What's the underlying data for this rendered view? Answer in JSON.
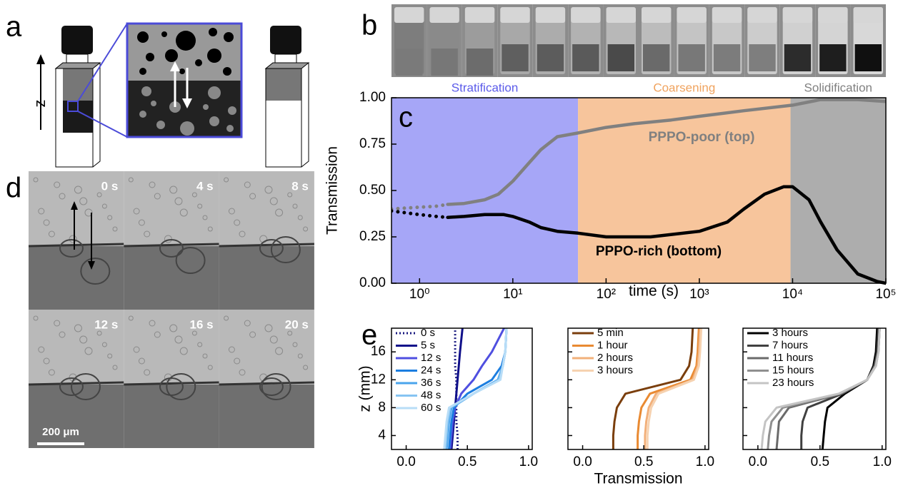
{
  "panel_labels": {
    "a": "a",
    "b": "b",
    "d": "d",
    "e": "e"
  },
  "schematic": {
    "axis_label": "z"
  },
  "micrograph": {
    "frames": [
      "0 s",
      "4 s",
      "8 s",
      "12 s",
      "16 s",
      "20 s"
    ],
    "scale_bar": "200 μm"
  },
  "chart_data": [
    {
      "type": "line",
      "panel_label": "c",
      "xlabel": "time (s)",
      "ylabel": "Transmission",
      "log_x": true,
      "xlim": [
        0.5,
        100000
      ],
      "xticks": [
        {
          "value": 1,
          "label": "10⁰"
        },
        {
          "value": 10,
          "label": "10¹"
        },
        {
          "value": 100,
          "label": "10²"
        },
        {
          "value": 1000,
          "label": "10³"
        },
        {
          "value": 10000,
          "label": "10⁴"
        },
        {
          "value": 100000,
          "label": "10⁵"
        }
      ],
      "ylim": [
        0,
        1
      ],
      "yticks": [
        {
          "value": 0,
          "label": "0.00"
        },
        {
          "value": 0.25,
          "label": "0.25"
        },
        {
          "value": 0.5,
          "label": "0.50"
        },
        {
          "value": 0.75,
          "label": "0.75"
        },
        {
          "value": 1,
          "label": "1.00"
        }
      ],
      "regions": [
        {
          "name": "Stratification",
          "range": [
            0.5,
            50
          ],
          "color": "#a6a6f7",
          "label_color": "#5b5bea"
        },
        {
          "name": "Coarsening",
          "range": [
            50,
            9500
          ],
          "color": "#f7c59c",
          "label_color": "#f0a35e"
        },
        {
          "name": "Solidification",
          "range": [
            9500,
            100000
          ],
          "color": "#adadad",
          "label_color": "#808080"
        }
      ],
      "dotted_before": 2,
      "series": [
        {
          "name": "PPPO-poor (top)",
          "color": "#808080",
          "x": [
            0.5,
            0.7,
            1,
            1.5,
            2,
            3,
            5,
            7,
            10,
            15,
            20,
            30,
            50,
            100,
            200,
            500,
            1000,
            3000,
            10000,
            20000,
            50000,
            100000
          ],
          "values": [
            0.4,
            0.405,
            0.41,
            0.415,
            0.425,
            0.43,
            0.45,
            0.48,
            0.55,
            0.65,
            0.72,
            0.79,
            0.81,
            0.84,
            0.86,
            0.88,
            0.9,
            0.93,
            0.96,
            0.99,
            0.99,
            0.98
          ]
        },
        {
          "name": "PPPO-rich (bottom)",
          "color": "#000000",
          "x": [
            0.5,
            0.7,
            1,
            1.5,
            2,
            3,
            5,
            8,
            10,
            15,
            20,
            30,
            50,
            100,
            200,
            300,
            1000,
            2000,
            3000,
            5000,
            8000,
            10000,
            15000,
            20000,
            30000,
            50000,
            80000,
            100000
          ],
          "values": [
            0.39,
            0.38,
            0.37,
            0.36,
            0.355,
            0.36,
            0.37,
            0.37,
            0.36,
            0.33,
            0.3,
            0.28,
            0.27,
            0.25,
            0.25,
            0.25,
            0.28,
            0.33,
            0.4,
            0.48,
            0.52,
            0.52,
            0.45,
            0.33,
            0.18,
            0.05,
            0.01,
            0
          ]
        }
      ]
    },
    {
      "type": "profile",
      "ylabel": "z (mm)",
      "xlim": [
        -0.12,
        1.03
      ],
      "ylim": [
        2,
        19.4
      ],
      "xticks": [
        {
          "value": 0,
          "label": "0.0"
        },
        0.5,
        {
          "value": 1,
          "label": "1.0"
        }
      ],
      "yticks": [
        4,
        8,
        12,
        16
      ],
      "ytick_labels": true,
      "y": [
        2,
        4,
        6,
        8,
        10,
        12,
        14,
        16,
        19.4
      ],
      "series": [
        {
          "name": "0 s",
          "color": "#1a1a80",
          "line_style": "dotted",
          "values": [
            0.42,
            0.42,
            0.41,
            0.41,
            0.41,
            0.41,
            0.4,
            0.4,
            0.4
          ]
        },
        {
          "name": "5 s",
          "color": "#10108a",
          "values": [
            0.37,
            0.38,
            0.39,
            0.4,
            0.41,
            0.42,
            0.43,
            0.44,
            0.46
          ]
        },
        {
          "name": "12 s",
          "color": "#4f4fe0",
          "values": [
            0.36,
            0.37,
            0.38,
            0.4,
            0.45,
            0.55,
            0.62,
            0.7,
            0.8
          ]
        },
        {
          "name": "24 s",
          "color": "#1c7ee0",
          "values": [
            0.35,
            0.36,
            0.37,
            0.39,
            0.5,
            0.7,
            0.78,
            0.81,
            0.82
          ]
        },
        {
          "name": "36 s",
          "color": "#4aa4ec",
          "values": [
            0.33,
            0.34,
            0.35,
            0.37,
            0.55,
            0.75,
            0.79,
            0.81,
            0.82
          ]
        },
        {
          "name": "48 s",
          "color": "#86c4f2",
          "values": [
            0.32,
            0.33,
            0.34,
            0.36,
            0.55,
            0.76,
            0.79,
            0.81,
            0.82
          ]
        },
        {
          "name": "60 s",
          "color": "#b8ddf7",
          "values": [
            0.31,
            0.32,
            0.33,
            0.35,
            0.55,
            0.77,
            0.79,
            0.81,
            0.82
          ]
        }
      ]
    },
    {
      "type": "profile",
      "xlabel": "Transmission",
      "xlim": [
        -0.12,
        1.03
      ],
      "ylim": [
        2,
        19.4
      ],
      "xticks": [
        {
          "value": 0,
          "label": "0.0"
        },
        0.5,
        {
          "value": 1,
          "label": "1.0"
        }
      ],
      "yticks": [
        4,
        8,
        12,
        16
      ],
      "ytick_labels": false,
      "y": [
        2,
        4,
        6,
        8,
        10,
        12,
        14,
        16,
        19.4
      ],
      "series": [
        {
          "name": "5 min",
          "color": "#7a3e0c",
          "values": [
            0.25,
            0.25,
            0.26,
            0.28,
            0.35,
            0.8,
            0.87,
            0.89,
            0.9
          ]
        },
        {
          "name": "1 hour",
          "color": "#e98a32",
          "values": [
            0.45,
            0.45,
            0.46,
            0.48,
            0.55,
            0.88,
            0.93,
            0.94,
            0.95
          ]
        },
        {
          "name": "2 hours",
          "color": "#f2b07a",
          "values": [
            0.51,
            0.51,
            0.52,
            0.54,
            0.6,
            0.9,
            0.94,
            0.95,
            0.96
          ]
        },
        {
          "name": "3 hours",
          "color": "#f6d2b0",
          "values": [
            0.53,
            0.53,
            0.54,
            0.56,
            0.62,
            0.91,
            0.95,
            0.96,
            0.97
          ]
        }
      ]
    },
    {
      "type": "profile",
      "xlim": [
        -0.12,
        1.03
      ],
      "ylim": [
        2,
        19.4
      ],
      "xticks": [
        {
          "value": 0,
          "label": "0.0"
        },
        0.5,
        {
          "value": 1,
          "label": "1.0"
        }
      ],
      "yticks": [
        4,
        8,
        12,
        16
      ],
      "ytick_labels": false,
      "y": [
        2,
        4,
        6,
        8,
        10,
        12,
        14,
        16,
        19.4
      ],
      "series": [
        {
          "name": "3 hours",
          "color": "#000000",
          "values": [
            0.52,
            0.53,
            0.54,
            0.56,
            0.7,
            0.88,
            0.93,
            0.95,
            0.96
          ]
        },
        {
          "name": "7 hours",
          "color": "#404040",
          "values": [
            0.35,
            0.35,
            0.36,
            0.4,
            0.68,
            0.88,
            0.94,
            0.96,
            0.97
          ]
        },
        {
          "name": "11 hours",
          "color": "#6a6a6a",
          "values": [
            0.15,
            0.16,
            0.17,
            0.25,
            0.67,
            0.88,
            0.94,
            0.97,
            0.98
          ]
        },
        {
          "name": "15 hours",
          "color": "#8f8f8f",
          "values": [
            0.08,
            0.09,
            0.11,
            0.2,
            0.66,
            0.88,
            0.95,
            0.97,
            0.98
          ]
        },
        {
          "name": "23 hours",
          "color": "#c4c4c4",
          "values": [
            0.03,
            0.04,
            0.06,
            0.15,
            0.65,
            0.88,
            0.95,
            0.97,
            0.98
          ]
        }
      ]
    }
  ]
}
